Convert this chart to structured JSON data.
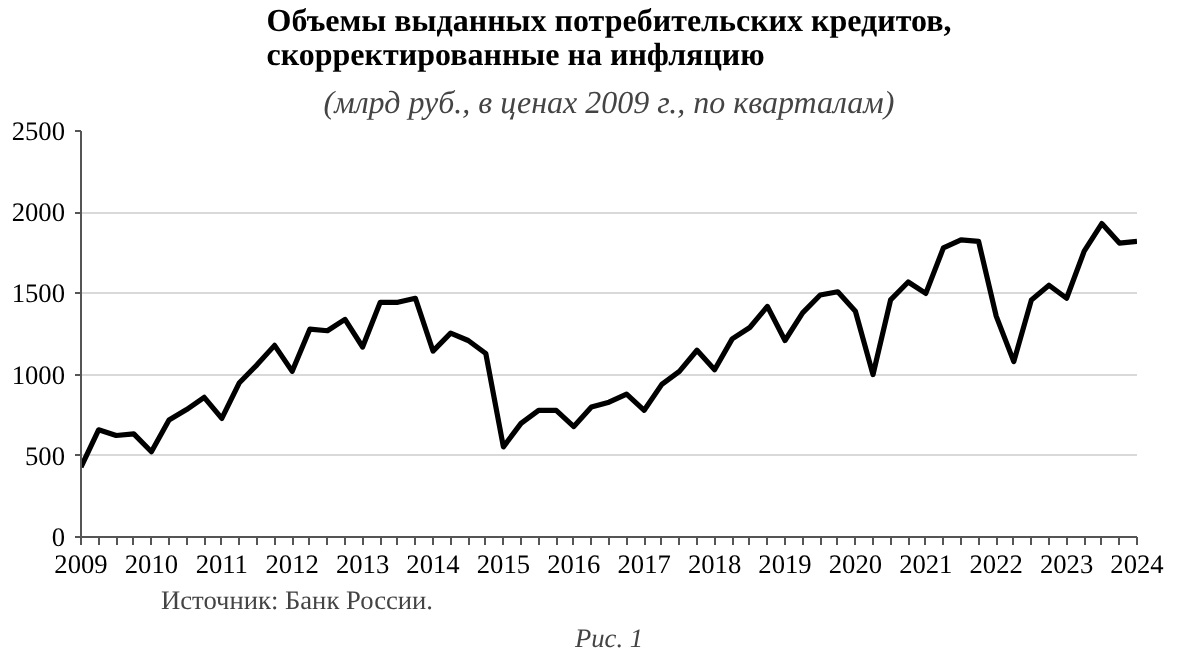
{
  "chart_data": {
    "type": "line",
    "title": "Объемы выданных потребительских кредитов,\nскорректированные на инфляцию",
    "subtitle": "(млрд руб., в ценах 2009 г., по кварталам)",
    "annotations": [
      "Источник: Банк России.",
      "Рис. 1"
    ],
    "x": [
      2009,
      2009.25,
      2009.5,
      2009.75,
      2010,
      2010.25,
      2010.5,
      2010.75,
      2011,
      2011.25,
      2011.5,
      2011.75,
      2012,
      2012.25,
      2012.5,
      2012.75,
      2013,
      2013.25,
      2013.5,
      2013.75,
      2014,
      2014.25,
      2014.5,
      2014.75,
      2015,
      2015.25,
      2015.5,
      2015.75,
      2016,
      2016.25,
      2016.5,
      2016.75,
      2017,
      2017.25,
      2017.5,
      2017.75,
      2018,
      2018.25,
      2018.5,
      2018.75,
      2019,
      2019.25,
      2019.5,
      2019.75,
      2020,
      2020.25,
      2020.5,
      2020.75,
      2021,
      2021.25,
      2021.5,
      2021.75,
      2022,
      2022.25,
      2022.5,
      2022.75,
      2023,
      2023.25,
      2023.5,
      2023.75,
      2024
    ],
    "series": [
      {
        "color": "#000000",
        "values": [
          430,
          660,
          625,
          635,
          525,
          720,
          785,
          860,
          730,
          950,
          1060,
          1180,
          1020,
          1280,
          1270,
          1340,
          1170,
          1445,
          1445,
          1470,
          1145,
          1255,
          1210,
          1130,
          555,
          700,
          780,
          780,
          680,
          800,
          830,
          880,
          780,
          940,
          1020,
          1150,
          1030,
          1220,
          1290,
          1420,
          1210,
          1380,
          1490,
          1510,
          1390,
          1000,
          1460,
          1570,
          1500,
          1780,
          1830,
          1820,
          1360,
          1080,
          1460,
          1550,
          1470,
          1760,
          1930,
          1810,
          1820
        ]
      }
    ],
    "xlim": [
      2009,
      2024
    ],
    "xticks": [
      2009,
      2010,
      2011,
      2012,
      2013,
      2014,
      2015,
      2016,
      2017,
      2018,
      2019,
      2020,
      2021,
      2022,
      2023,
      2024
    ],
    "ylim": [
      0,
      2500
    ],
    "yticks": [
      0,
      500,
      1000,
      1500,
      2000,
      2500
    ],
    "grid": "y"
  }
}
